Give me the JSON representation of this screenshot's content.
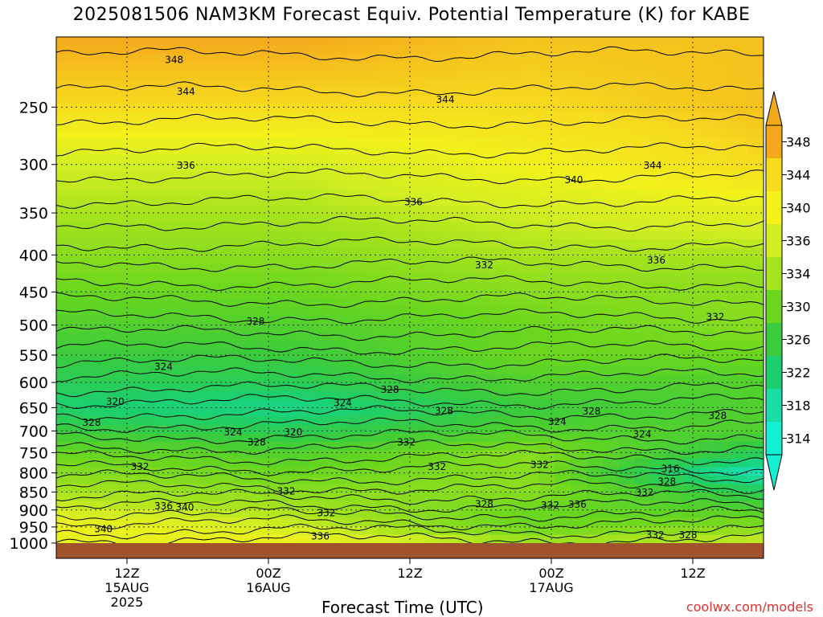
{
  "title": "2025081506 NAM3KM Forecast Equiv. Potential Temperature (K) for KABE",
  "credit": "coolwx.com/models",
  "chart_data": {
    "type": "heatmap",
    "title": "2025081506 NAM3KM Forecast Equiv. Potential Temperature (K) for KABE",
    "xlabel": "Forecast Time (UTC)",
    "ylabel": "",
    "x_unit": "forecast hour",
    "xlim": [
      0,
      60
    ],
    "y_scale": "log-pressure",
    "ylim": [
      1000,
      200
    ],
    "grid": true,
    "y_ticks": [
      250,
      300,
      350,
      400,
      450,
      500,
      550,
      600,
      650,
      700,
      750,
      800,
      850,
      900,
      950,
      1000
    ],
    "x_ticks": [
      {
        "hour": 6,
        "lines": [
          "12Z",
          "15AUG",
          "2025"
        ]
      },
      {
        "hour": 18,
        "lines": [
          "00Z",
          "16AUG"
        ]
      },
      {
        "hour": 30,
        "lines": [
          "12Z"
        ]
      },
      {
        "hour": 42,
        "lines": [
          "00Z",
          "17AUG"
        ]
      },
      {
        "hour": 54,
        "lines": [
          "12Z"
        ]
      }
    ],
    "colorbar": {
      "labels": [
        348,
        344,
        340,
        336,
        334,
        330,
        326,
        322,
        318,
        314
      ],
      "colors": [
        "#f4a81c",
        "#f6dc1e",
        "#f2f21a",
        "#d2ee22",
        "#a8e41e",
        "#6ad61e",
        "#3acb3e",
        "#1ccf6e",
        "#18dea6",
        "#14eed2"
      ]
    },
    "contour_interval_K": 2,
    "levels": [
      1000,
      950,
      900,
      850,
      800,
      750,
      700,
      650,
      600,
      550,
      500,
      450,
      400,
      350,
      300,
      250,
      200
    ],
    "bands": [
      {
        "level": 1000,
        "values": [
          338,
          340,
          334,
          336
        ]
      },
      {
        "level": 950,
        "values": [
          340,
          336,
          330,
          332
        ]
      },
      {
        "level": 900,
        "values": [
          336,
          334,
          330,
          328
        ]
      },
      {
        "level": 850,
        "values": [
          334,
          332,
          332,
          324
        ]
      },
      {
        "level": 800,
        "values": [
          332,
          330,
          332,
          316
        ]
      },
      {
        "level": 750,
        "values": [
          330,
          328,
          332,
          324
        ]
      },
      {
        "level": 700,
        "values": [
          326,
          324,
          328,
          328
        ]
      },
      {
        "level": 650,
        "values": [
          322,
          320,
          326,
          328
        ]
      },
      {
        "level": 600,
        "values": [
          324,
          324,
          328,
          328
        ]
      },
      {
        "level": 550,
        "values": [
          326,
          326,
          330,
          330
        ]
      },
      {
        "level": 500,
        "values": [
          328,
          328,
          330,
          332
        ]
      },
      {
        "level": 450,
        "values": [
          330,
          330,
          332,
          332
        ]
      },
      {
        "level": 400,
        "values": [
          332,
          332,
          334,
          334
        ]
      },
      {
        "level": 350,
        "values": [
          334,
          334,
          336,
          338
        ]
      },
      {
        "level": 300,
        "values": [
          336,
          336,
          340,
          344
        ]
      },
      {
        "level": 250,
        "values": [
          344,
          344,
          344,
          346
        ]
      },
      {
        "level": 200,
        "values": [
          348,
          348,
          346,
          346
        ]
      }
    ],
    "band_hours": [
      0,
      20,
      40,
      60
    ],
    "contour_labels": [
      {
        "text": "348",
        "hour": 10,
        "level": 215
      },
      {
        "text": "344",
        "hour": 11,
        "level": 238
      },
      {
        "text": "344",
        "hour": 33,
        "level": 244
      },
      {
        "text": "336",
        "hour": 11,
        "level": 301
      },
      {
        "text": "344",
        "hour": 50.6,
        "level": 301
      },
      {
        "text": "340",
        "hour": 43.9,
        "level": 315
      },
      {
        "text": "336",
        "hour": 30.3,
        "level": 338
      },
      {
        "text": "332",
        "hour": 36.3,
        "level": 413
      },
      {
        "text": "336",
        "hour": 50.9,
        "level": 407
      },
      {
        "text": "332",
        "hour": 55.9,
        "level": 487
      },
      {
        "text": "328",
        "hour": 16.9,
        "level": 494
      },
      {
        "text": "324",
        "hour": 9.1,
        "level": 571
      },
      {
        "text": "328",
        "hour": 28.3,
        "level": 614
      },
      {
        "text": "320",
        "hour": 5,
        "level": 638
      },
      {
        "text": "324",
        "hour": 24.3,
        "level": 640
      },
      {
        "text": "328",
        "hour": 32.9,
        "level": 657
      },
      {
        "text": "328",
        "hour": 45.4,
        "level": 658
      },
      {
        "text": "324",
        "hour": 42.5,
        "level": 680
      },
      {
        "text": "328",
        "hour": 56.1,
        "level": 667
      },
      {
        "text": "328",
        "hour": 3,
        "level": 682
      },
      {
        "text": "324",
        "hour": 15,
        "level": 703
      },
      {
        "text": "320",
        "hour": 20.1,
        "level": 703
      },
      {
        "text": "328",
        "hour": 17,
        "level": 726
      },
      {
        "text": "332",
        "hour": 29.7,
        "level": 726
      },
      {
        "text": "324",
        "hour": 49.7,
        "level": 707
      },
      {
        "text": "332",
        "hour": 7.1,
        "level": 785
      },
      {
        "text": "332",
        "hour": 32.3,
        "level": 785
      },
      {
        "text": "332",
        "hour": 41,
        "level": 780
      },
      {
        "text": "316",
        "hour": 52.1,
        "level": 790
      },
      {
        "text": "328",
        "hour": 51.8,
        "level": 822
      },
      {
        "text": "332",
        "hour": 19.5,
        "level": 848
      },
      {
        "text": "332",
        "hour": 49.9,
        "level": 851
      },
      {
        "text": "328",
        "hour": 36.3,
        "level": 883
      },
      {
        "text": "336",
        "hour": 9.1,
        "level": 889
      },
      {
        "text": "340",
        "hour": 10.9,
        "level": 893
      },
      {
        "text": "332",
        "hour": 41.9,
        "level": 887
      },
      {
        "text": "336",
        "hour": 44.2,
        "level": 885
      },
      {
        "text": "332",
        "hour": 22.9,
        "level": 909
      },
      {
        "text": "340",
        "hour": 4,
        "level": 956
      },
      {
        "text": "336",
        "hour": 22.4,
        "level": 979
      },
      {
        "text": "332",
        "hour": 50.8,
        "level": 975
      },
      {
        "text": "328",
        "hour": 53.6,
        "level": 975
      }
    ]
  }
}
